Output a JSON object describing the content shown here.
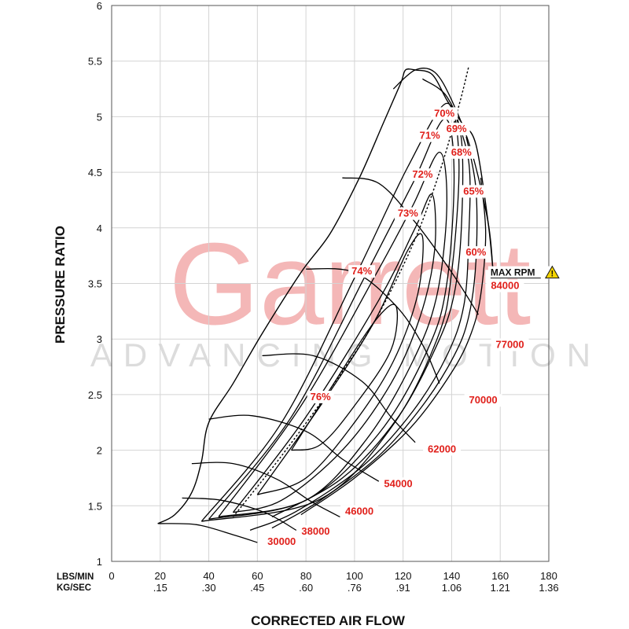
{
  "brand": {
    "logo_text": "Garrett",
    "tagline": "ADVANCING MOTION"
  },
  "chart_data": {
    "type": "line",
    "title": "",
    "xlabel": "CORRECTED AIR FLOW",
    "ylabel": "PRESSURE RATIO",
    "xlim": [
      0,
      180
    ],
    "ylim": [
      1,
      6
    ],
    "grid": true,
    "x_row_labels": [
      "LBS/MIN",
      "KG/SEC"
    ],
    "x_ticks_lbs": [
      "0",
      "20",
      "40",
      "60",
      "80",
      "100",
      "120",
      "140",
      "160",
      "180"
    ],
    "x_ticks_kg": [
      ".15",
      ".30",
      ".45",
      ".60",
      ".76",
      ".91",
      "1.06",
      "1.21",
      "1.36"
    ],
    "y_ticks": [
      "1",
      "1.5",
      "2",
      "2.5",
      "3",
      "3.5",
      "4",
      "4.5",
      "5",
      "5.5",
      "6"
    ],
    "surge_line": [
      [
        19,
        1.34
      ],
      [
        26,
        1.42
      ],
      [
        33,
        1.62
      ],
      [
        37,
        1.9
      ],
      [
        40,
        2.25
      ],
      [
        50,
        2.6
      ],
      [
        62,
        3.05
      ],
      [
        78,
        3.6
      ],
      [
        90,
        3.95
      ],
      [
        102,
        4.45
      ],
      [
        112,
        4.95
      ],
      [
        119,
        5.3
      ],
      [
        121,
        5.42
      ],
      [
        125,
        5.42
      ]
    ],
    "max_speed_line": [
      [
        125,
        5.42
      ],
      [
        132,
        5.38
      ],
      [
        138,
        5.15
      ],
      [
        144,
        4.95
      ],
      [
        150,
        4.75
      ],
      [
        155,
        4.05
      ],
      [
        157,
        3.62
      ]
    ],
    "choke_line": [
      [
        50,
        1.4
      ],
      [
        70,
        1.95
      ],
      [
        90,
        2.55
      ],
      [
        108,
        3.15
      ],
      [
        124,
        3.85
      ],
      [
        135,
        4.5
      ],
      [
        143,
        5.1
      ],
      [
        147,
        5.45
      ]
    ],
    "speed_lines": [
      {
        "label": "30000",
        "points": [
          [
            19,
            1.34
          ],
          [
            35,
            1.33
          ],
          [
            50,
            1.24
          ],
          [
            60,
            1.17
          ]
        ]
      },
      {
        "label": "38000",
        "points": [
          [
            29,
            1.57
          ],
          [
            45,
            1.55
          ],
          [
            63,
            1.44
          ],
          [
            76,
            1.28
          ]
        ]
      },
      {
        "label": "46000",
        "points": [
          [
            33,
            1.88
          ],
          [
            50,
            1.88
          ],
          [
            68,
            1.74
          ],
          [
            82,
            1.54
          ],
          [
            94,
            1.4
          ]
        ]
      },
      {
        "label": "54000",
        "points": [
          [
            40,
            2.28
          ],
          [
            58,
            2.31
          ],
          [
            80,
            2.17
          ],
          [
            95,
            1.92
          ],
          [
            110,
            1.72
          ]
        ]
      },
      {
        "label": "62000",
        "points": [
          [
            62,
            2.85
          ],
          [
            83,
            2.85
          ],
          [
            103,
            2.62
          ],
          [
            115,
            2.3
          ],
          [
            125,
            2.07
          ]
        ]
      },
      {
        "label": "70000",
        "points": [
          [
            80,
            3.63
          ],
          [
            100,
            3.6
          ],
          [
            117,
            3.3
          ],
          [
            128,
            2.95
          ],
          [
            135,
            2.6
          ]
        ]
      },
      {
        "label": "77000",
        "points": [
          [
            95,
            4.45
          ],
          [
            110,
            4.4
          ],
          [
            125,
            4.05
          ],
          [
            140,
            3.6
          ],
          [
            151,
            3.22
          ]
        ]
      },
      {
        "label": "84000",
        "points": [
          [
            116,
            5.25
          ],
          [
            125,
            5.42
          ],
          [
            133,
            5.4
          ],
          [
            140,
            5.15
          ],
          [
            148,
            4.7
          ],
          [
            155,
            4.05
          ],
          [
            157,
            3.62
          ]
        ]
      }
    ],
    "efficiency_islands": [
      {
        "label": "76%",
        "points": [
          [
            74,
            2.0
          ],
          [
            90,
            2.55
          ],
          [
            108,
            3.15
          ],
          [
            117,
            3.3
          ],
          [
            115,
            2.9
          ],
          [
            100,
            2.4
          ],
          [
            86,
            2.05
          ],
          [
            74,
            2.0
          ]
        ]
      },
      {
        "label": "74%",
        "points": [
          [
            60,
            1.6
          ],
          [
            86,
            2.4
          ],
          [
            108,
            3.15
          ],
          [
            122,
            3.8
          ],
          [
            128,
            3.92
          ],
          [
            126,
            3.4
          ],
          [
            116,
            2.8
          ],
          [
            100,
            2.25
          ],
          [
            80,
            1.75
          ],
          [
            60,
            1.6
          ]
        ]
      },
      {
        "label": "73%",
        "points": [
          [
            50,
            1.44
          ],
          [
            80,
            2.3
          ],
          [
            110,
            3.35
          ],
          [
            125,
            4.0
          ],
          [
            132,
            4.3
          ],
          [
            133,
            3.8
          ],
          [
            127,
            3.2
          ],
          [
            115,
            2.6
          ],
          [
            95,
            2.0
          ],
          [
            70,
            1.55
          ],
          [
            50,
            1.44
          ]
        ]
      },
      {
        "label": "72%",
        "points": [
          [
            44,
            1.4
          ],
          [
            78,
            2.4
          ],
          [
            108,
            3.55
          ],
          [
            124,
            4.2
          ],
          [
            135,
            4.68
          ],
          [
            138,
            4.2
          ],
          [
            134,
            3.4
          ],
          [
            124,
            2.8
          ],
          [
            105,
            2.1
          ],
          [
            80,
            1.55
          ],
          [
            44,
            1.4
          ]
        ]
      },
      {
        "label": "71%",
        "points": [
          [
            40,
            1.38
          ],
          [
            74,
            2.3
          ],
          [
            104,
            3.55
          ],
          [
            124,
            4.4
          ],
          [
            137,
            4.98
          ],
          [
            141,
            4.5
          ],
          [
            138,
            3.5
          ],
          [
            130,
            2.9
          ],
          [
            110,
            2.15
          ],
          [
            80,
            1.55
          ],
          [
            40,
            1.38
          ]
        ]
      },
      {
        "label": "70%",
        "points": [
          [
            37,
            1.36
          ],
          [
            70,
            2.25
          ],
          [
            100,
            3.55
          ],
          [
            122,
            4.55
          ],
          [
            138,
            5.12
          ],
          [
            143,
            4.6
          ],
          [
            140,
            3.6
          ],
          [
            134,
            3.0
          ],
          [
            115,
            2.2
          ],
          [
            85,
            1.55
          ],
          [
            37,
            1.36
          ]
        ]
      },
      {
        "label": "69%",
        "points": [
          [
            128,
            5.34
          ],
          [
            138,
            5.18
          ],
          [
            144,
            4.8
          ],
          [
            144,
            4.0
          ],
          [
            141,
            3.4
          ],
          [
            134,
            2.95
          ],
          [
            118,
            2.3
          ],
          [
            95,
            1.75
          ],
          [
            66,
            1.4
          ]
        ]
      },
      {
        "label": "68%",
        "points": [
          [
            140,
            5.1
          ],
          [
            147,
            4.6
          ],
          [
            147,
            3.9
          ],
          [
            145,
            3.3
          ],
          [
            138,
            2.85
          ],
          [
            124,
            2.35
          ],
          [
            103,
            1.85
          ],
          [
            76,
            1.45
          ],
          [
            57,
            1.28
          ]
        ]
      },
      {
        "label": "65%",
        "points": [
          [
            146,
            4.82
          ],
          [
            150,
            4.35
          ],
          [
            150,
            3.7
          ],
          [
            147,
            3.2
          ],
          [
            141,
            2.85
          ],
          [
            128,
            2.4
          ],
          [
            110,
            1.95
          ],
          [
            86,
            1.55
          ],
          [
            66,
            1.3
          ]
        ]
      },
      {
        "label": "60%",
        "points": [
          [
            152,
            4.45
          ],
          [
            154,
            3.95
          ],
          [
            152,
            3.4
          ],
          [
            148,
            3.05
          ],
          [
            140,
            2.7
          ],
          [
            123,
            2.2
          ],
          [
            100,
            1.75
          ],
          [
            78,
            1.42
          ]
        ]
      }
    ],
    "efficiency_labels": [
      {
        "text": "70%",
        "x": 137,
        "y": 5.0
      },
      {
        "text": "69%",
        "x": 142,
        "y": 4.86
      },
      {
        "text": "71%",
        "x": 131,
        "y": 4.8
      },
      {
        "text": "68%",
        "x": 144,
        "y": 4.65
      },
      {
        "text": "72%",
        "x": 128,
        "y": 4.45
      },
      {
        "text": "65%",
        "x": 149,
        "y": 4.3
      },
      {
        "text": "73%",
        "x": 122,
        "y": 4.1
      },
      {
        "text": "60%",
        "x": 150,
        "y": 3.75
      },
      {
        "text": "74%",
        "x": 103,
        "y": 3.58
      },
      {
        "text": "76%",
        "x": 86,
        "y": 2.45
      }
    ],
    "speed_labels": [
      {
        "text": "84000",
        "x": 162,
        "y": 3.45
      },
      {
        "text": "77000",
        "x": 164,
        "y": 2.92
      },
      {
        "text": "70000",
        "x": 153,
        "y": 2.42
      },
      {
        "text": "62000",
        "x": 136,
        "y": 1.98
      },
      {
        "text": "54000",
        "x": 118,
        "y": 1.67
      },
      {
        "text": "46000",
        "x": 102,
        "y": 1.42
      },
      {
        "text": "38000",
        "x": 84,
        "y": 1.24
      },
      {
        "text": "30000",
        "x": 70,
        "y": 1.15
      }
    ],
    "max_rpm_label": {
      "text": "MAX RPM",
      "icon": "warning-triangle-icon",
      "x": 156,
      "y": 3.57
    }
  }
}
